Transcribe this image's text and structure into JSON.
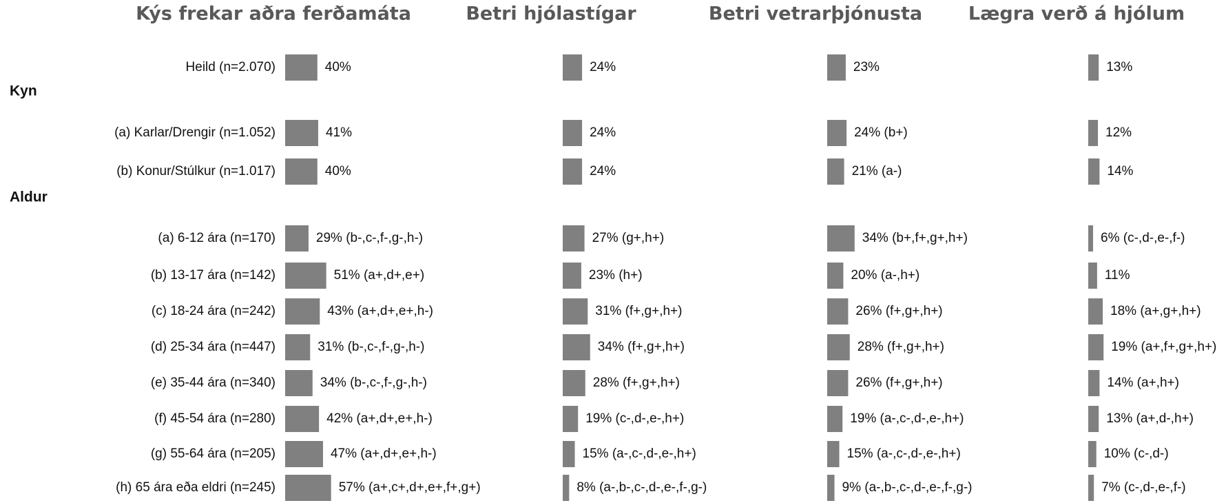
{
  "rows": [
    {
      "category": "Heild (n=2.070)"
    },
    {
      "group": "Kyn"
    },
    {
      "category": "(a) Karlar/Drengir (n=1.052)"
    },
    {
      "category": "(b) Konur/Stúlkur (n=1.017)"
    },
    {
      "group": "Aldur"
    },
    {
      "category": "(a) 6-12 ára (n=170)"
    },
    {
      "category": "(b) 13-17 ára (n=142)"
    },
    {
      "category": "(c) 18-24 ára (n=242)"
    },
    {
      "category": "(d) 25-34 ára (n=447)"
    },
    {
      "category": "(e) 35-44 ára (n=340)"
    },
    {
      "category": "(f) 45-54 ára (n=280)"
    },
    {
      "category": "(g) 55-64 ára (n=205)"
    },
    {
      "category": "(h) 65 ára eða eldri (n=245)"
    }
  ],
  "chart_data": [
    {
      "type": "bar",
      "title": "Kýs frekar aðra ferðamáta",
      "color": "#808080",
      "values": [
        40,
        41,
        40,
        29,
        51,
        43,
        31,
        34,
        42,
        47,
        57
      ],
      "value_labels": [
        "40%",
        "41%",
        "40%",
        "29% (b-,c-,f-,g-,h-)",
        "51% (a+,d+,e+)",
        "43% (a+,d+,e+,h-)",
        "31% (b-,c-,f-,g-,h-)",
        "34% (b-,c-,f-,g-,h-)",
        "42% (a+,d+,e+,h-)",
        "47% (a+,d+,e+,h-)",
        "57% (a+,c+,d+,e+,f+,g+)"
      ]
    },
    {
      "type": "bar",
      "title": "Betri hjólastígar",
      "color": "#808080",
      "values": [
        24,
        24,
        24,
        27,
        23,
        31,
        34,
        28,
        19,
        15,
        8
      ],
      "value_labels": [
        "24%",
        "24%",
        "24%",
        "27% (g+,h+)",
        "23% (h+)",
        "31% (f+,g+,h+)",
        "34% (f+,g+,h+)",
        "28% (f+,g+,h+)",
        "19% (c-,d-,e-,h+)",
        "15% (a-,c-,d-,e-,h+)",
        "8% (a-,b-,c-,d-,e-,f-,g-)"
      ]
    },
    {
      "type": "bar",
      "title": "Betri vetrarþjónusta",
      "color": "#808080",
      "values": [
        23,
        24,
        21,
        34,
        20,
        26,
        28,
        26,
        19,
        15,
        9
      ],
      "value_labels": [
        "23%",
        "24% (b+)",
        "21% (a-)",
        "34% (b+,f+,g+,h+)",
        "20% (a-,h+)",
        "26% (f+,g+,h+)",
        "28% (f+,g+,h+)",
        "26% (f+,g+,h+)",
        "19% (a-,c-,d-,e-,h+)",
        "15% (a-,c-,d-,e-,h+)",
        "9% (a-,b-,c-,d-,e-,f-,g-)"
      ]
    },
    {
      "type": "bar",
      "title": "Lægra verð á hjólum",
      "color": "#808080",
      "values": [
        13,
        12,
        14,
        6,
        11,
        18,
        19,
        14,
        13,
        10,
        7
      ],
      "value_labels": [
        "13%",
        "12%",
        "14%",
        "6% (c-,d-,e-,f-)",
        "11%",
        "18% (a+,g+,h+)",
        "19% (a+,f+,g+,h+)",
        "14% (a+,h+)",
        "13% (a+,d-,h+)",
        "10% (c-,d-)",
        "7% (c-,d-,e-,f-)"
      ]
    }
  ]
}
